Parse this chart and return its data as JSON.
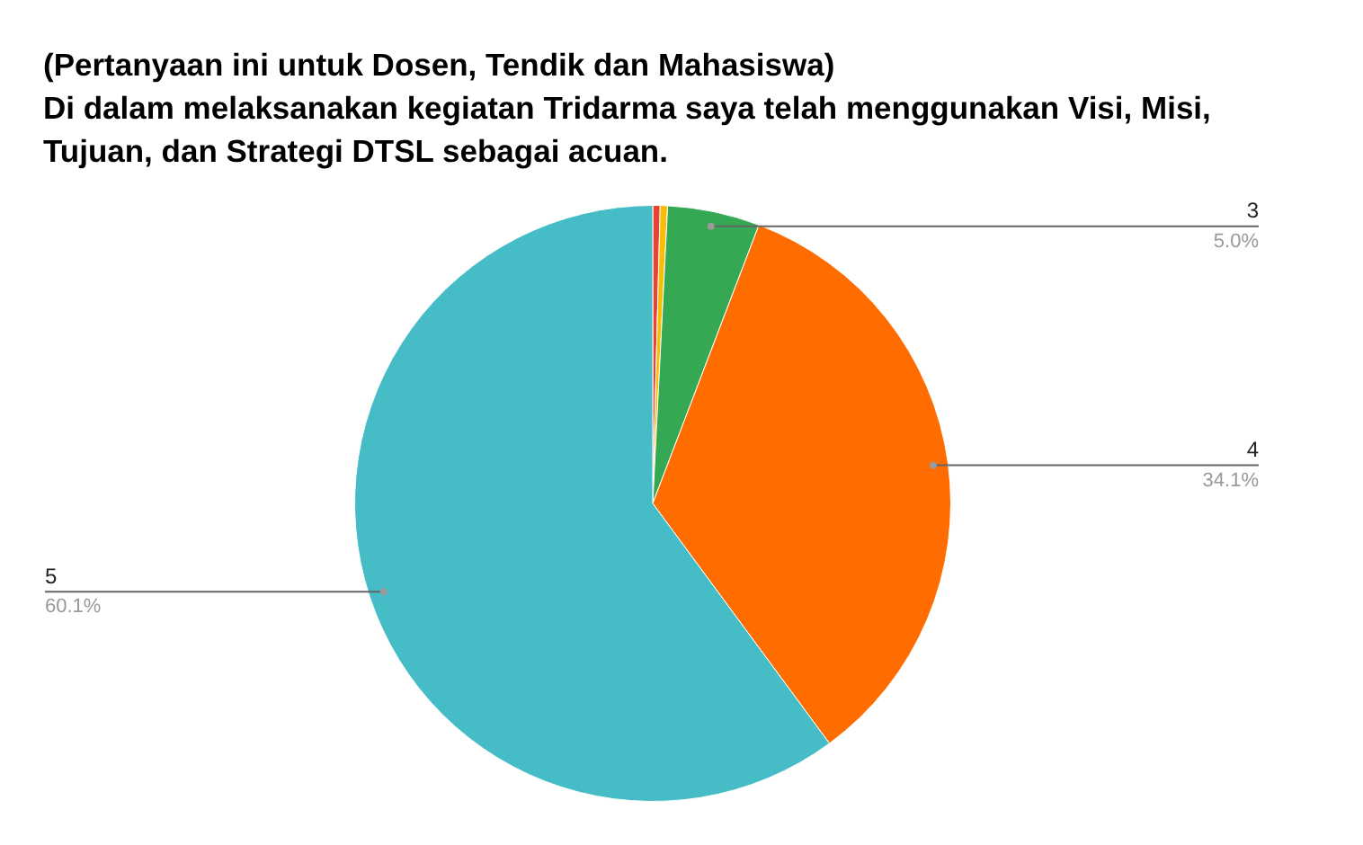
{
  "chart_data": {
    "type": "pie",
    "title": "(Pertanyaan ini untuk Dosen, Tendik dan Mahasiswa)",
    "subtitle": "Di dalam melaksanakan kegiatan Tridarma saya telah menggunakan Visi, Misi, Tujuan, dan Strategi DTSL sebagai acuan.",
    "categories": [
      null,
      null,
      "3",
      "4",
      "5"
    ],
    "values": [
      0.4,
      0.4,
      5.0,
      34.1,
      60.1
    ],
    "colors": [
      "#ea4335",
      "#fbbc04",
      "#34a853",
      "#ff6d01",
      "#46bdc6"
    ],
    "value_labels": [
      null,
      null,
      "5.0%",
      "34.1%",
      "60.1%"
    ],
    "legend": false
  }
}
